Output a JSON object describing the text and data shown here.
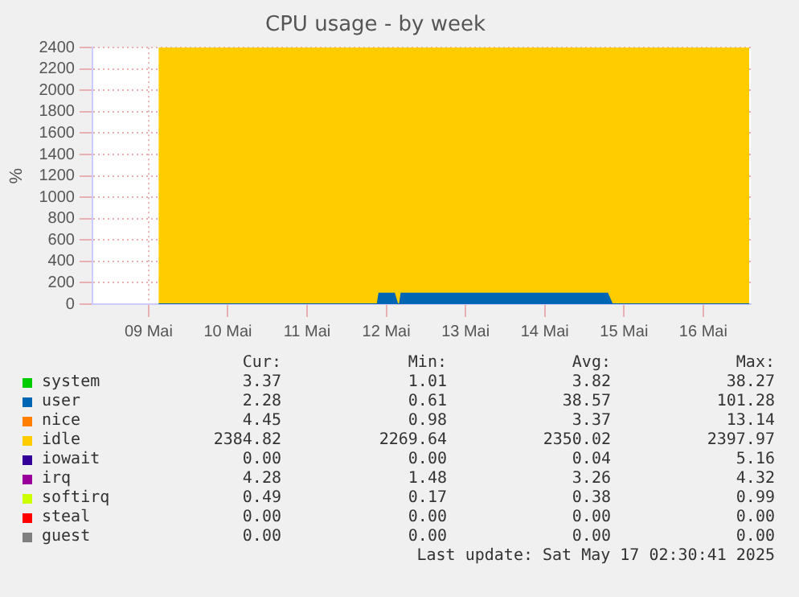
{
  "chart_data": {
    "type": "area",
    "title": "CPU usage - by week",
    "ylabel": "%",
    "stacked": true,
    "x": [
      9.625,
      12.39,
      12.41,
      12.6,
      12.64,
      12.67,
      12.69,
      15.29,
      15.35,
      17.08
    ],
    "series": [
      {
        "name": "system",
        "color": "#00cc00",
        "values": [
          null,
          null,
          null,
          null,
          null,
          null,
          null,
          null,
          null,
          null
        ]
      },
      {
        "name": "user",
        "color": "#0066b3",
        "values": [
          0,
          0,
          100,
          100,
          0,
          0,
          100,
          100,
          0,
          0
        ]
      },
      {
        "name": "nice",
        "color": "#ff8000",
        "values": [
          null,
          null,
          null,
          null,
          null,
          null,
          null,
          null,
          null,
          null
        ]
      },
      {
        "name": "idle",
        "color": "#ffcc00",
        "values": [
          2400,
          2400,
          2300,
          2300,
          2400,
          2400,
          2300,
          2300,
          2400,
          2400
        ]
      },
      {
        "name": "iowait",
        "color": "#330099",
        "values": [
          null,
          null,
          null,
          null,
          null,
          null,
          null,
          null,
          null,
          null
        ]
      },
      {
        "name": "irq",
        "color": "#990099",
        "values": [
          null,
          null,
          null,
          null,
          null,
          null,
          null,
          null,
          null,
          null
        ]
      },
      {
        "name": "softirq",
        "color": "#ccff00",
        "values": [
          null,
          null,
          null,
          null,
          null,
          null,
          null,
          null,
          null,
          null
        ]
      },
      {
        "name": "steal",
        "color": "#ff0000",
        "values": [
          null,
          null,
          null,
          null,
          null,
          null,
          null,
          null,
          null,
          null
        ]
      },
      {
        "name": "guest",
        "color": "#808080",
        "values": [
          null,
          null,
          null,
          null,
          null,
          null,
          null,
          null,
          null,
          null
        ]
      }
    ],
    "xlim": [
      8.79,
      17.1
    ],
    "xticks": [
      {
        "value": 9.5,
        "label": "09 Mai"
      },
      {
        "value": 10.5,
        "label": "10 Mai"
      },
      {
        "value": 11.5,
        "label": "11 Mai"
      },
      {
        "value": 12.5,
        "label": "12 Mai"
      },
      {
        "value": 13.5,
        "label": "13 Mai"
      },
      {
        "value": 14.5,
        "label": "14 Mai"
      },
      {
        "value": 15.5,
        "label": "15 Mai"
      },
      {
        "value": 16.5,
        "label": "16 Mai"
      }
    ],
    "ylim": [
      0,
      2400
    ],
    "yticks": [
      0,
      200,
      400,
      600,
      800,
      1000,
      1200,
      1400,
      1600,
      1800,
      2000,
      2200,
      2400
    ],
    "grid": true,
    "legend": "bottom",
    "marker": "none",
    "annotations": [
      "Cur:",
      "Min:",
      "Avg:",
      "Max:",
      "3.37",
      "1.01",
      "3.82",
      "38.27",
      "2.28",
      "0.61",
      "38.57",
      "101.28",
      "4.45",
      "0.98",
      "3.37",
      "13.14",
      "2384.82",
      "2269.64",
      "2350.02",
      "2397.97",
      "0.00",
      "0.00",
      "0.04",
      "5.16",
      "4.28",
      "1.48",
      "3.26",
      "4.32",
      "0.49",
      "0.17",
      "0.38",
      "0.99",
      "0.00",
      "0.00",
      "0.00",
      "0.00",
      "0.00",
      "0.00",
      "0.00",
      "0.00",
      "Last update: Sat May 17 02:30:41 2025"
    ]
  }
}
